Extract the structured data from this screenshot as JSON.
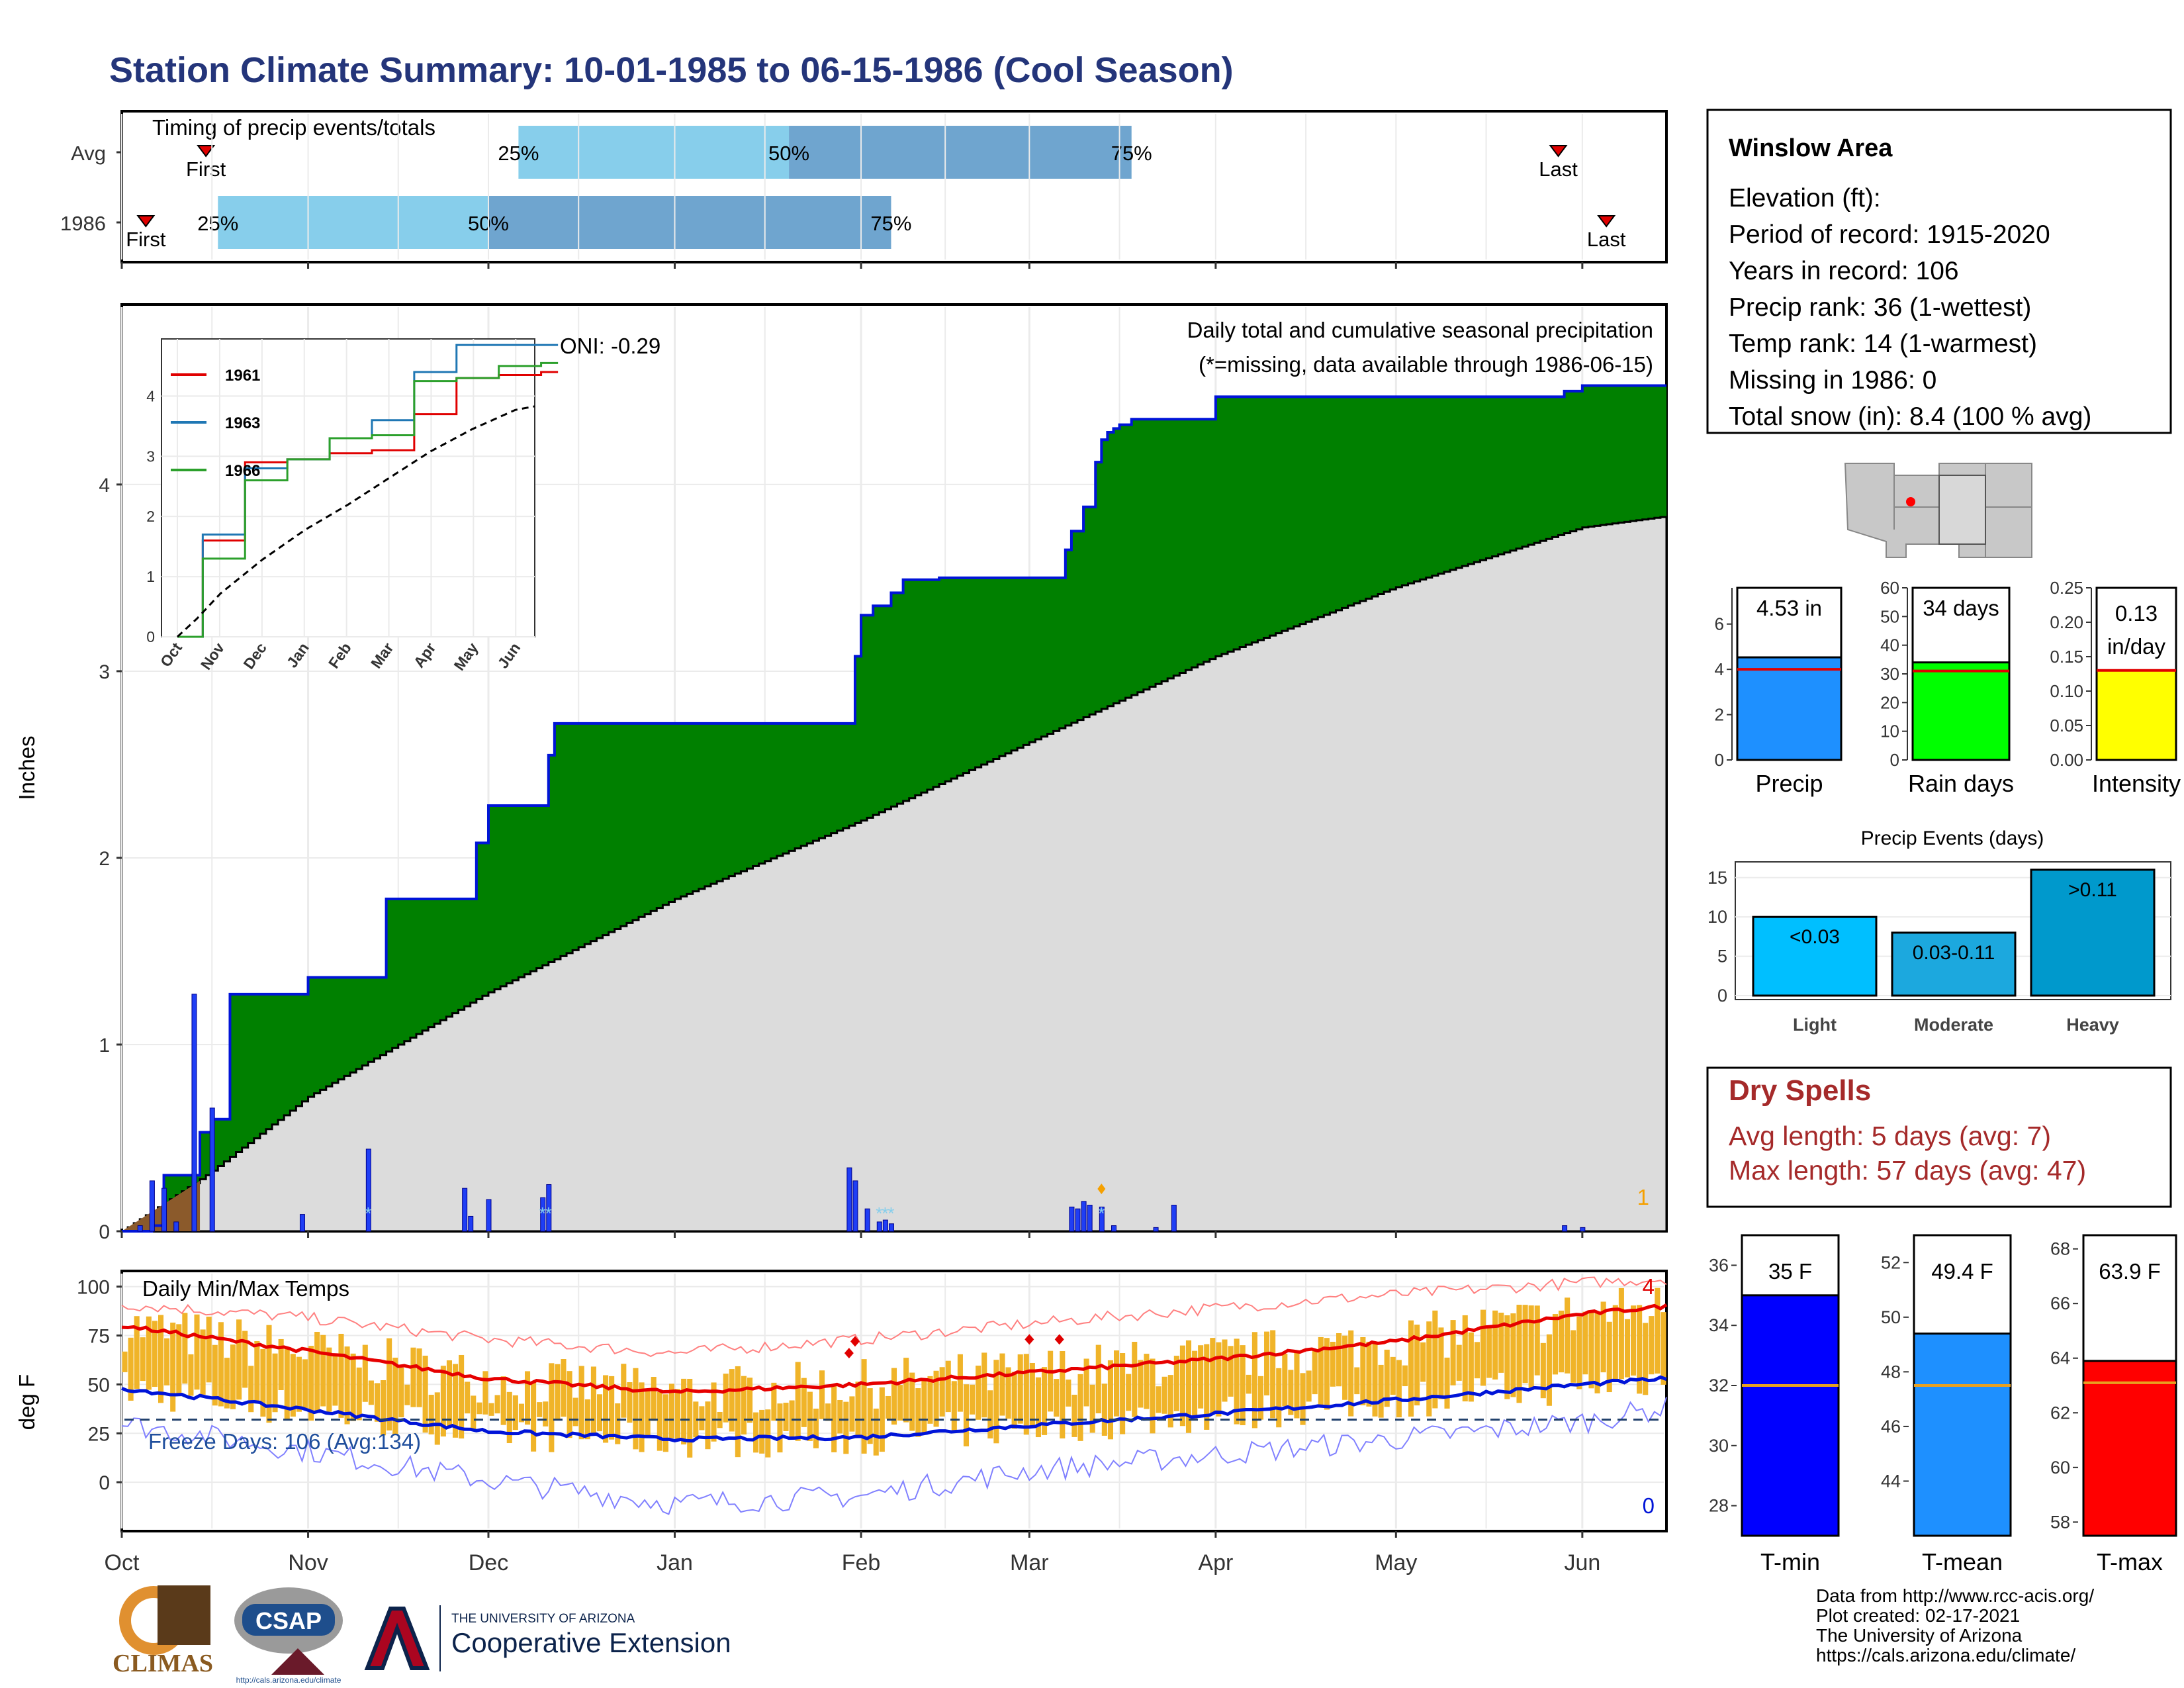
{
  "title": "Station Climate Summary: 10-01-1985 to 06-15-1986 (Cool Season)",
  "colors": {
    "title": "#24357a",
    "precip_fill": "#008000",
    "normal_fill": "#dcdcdc",
    "daily_bar": "#1f3ef5",
    "temp_bar": "#f0b429",
    "max_line": "#e60000",
    "min_line": "#0014d8",
    "light_blue": "#87ceeb",
    "mid_blue": "#6fa5cf",
    "dry_spells": "#a52a2a"
  },
  "timing": {
    "title": "Timing of precip events/totals",
    "rows": [
      {
        "label": "Avg",
        "first": "First",
        "last": "Last",
        "p25": "25%",
        "p50": "50%",
        "p75": "75%"
      },
      {
        "label": "1986",
        "first": "First",
        "last": "Last",
        "p25": "25%",
        "p50": "50%",
        "p75": "75%"
      }
    ]
  },
  "precip_panel": {
    "ylabel": "Inches",
    "oni": "ONI: -0.29",
    "caption": "Daily total and cumulative seasonal precipitation",
    "missing_note": "(*=missing, data available through 1986-06-15)",
    "corner_count": "1",
    "y_ticks": [
      "0",
      "1",
      "2",
      "3",
      "4"
    ]
  },
  "inset": {
    "legend": [
      "1961",
      "1963",
      "1966"
    ],
    "y_ticks": [
      "0",
      "1",
      "2",
      "3",
      "4"
    ],
    "x_ticks": [
      "Oct",
      "Nov",
      "Dec",
      "Jan",
      "Feb",
      "Mar",
      "Apr",
      "May",
      "Jun"
    ]
  },
  "temp_panel": {
    "ylabel": "deg F",
    "title": "Daily Min/Max Temps",
    "freeze_days": "Freeze Days: 106 (Avg:134)",
    "hot_count": "4",
    "cold_count": "0",
    "y_ticks": [
      "100",
      "75",
      "50",
      "25",
      "0"
    ]
  },
  "month_labels": [
    "Oct",
    "Nov",
    "Dec",
    "Jan",
    "Feb",
    "Mar",
    "Apr",
    "May",
    "Jun"
  ],
  "info_box": {
    "name": "Winslow Area",
    "lines": [
      "Elevation (ft):",
      "Period of record: 1915-2020",
      "Years in record: 106",
      "Precip rank: 36 (1-wettest)",
      "Temp rank: 14 (1-warmest)",
      "Missing in 1986: 0",
      "Total snow (in): 8.4 (100 % avg)"
    ]
  },
  "mini_bars": [
    {
      "label": "Precip",
      "value_text": "4.53 in",
      "value": 4.53,
      "avg": 4.0,
      "max": 7.6,
      "ticks": [
        "6",
        "4",
        "2",
        "0"
      ],
      "color": "#1e90ff"
    },
    {
      "label": "Rain days",
      "value_text": "34 days",
      "value": 34,
      "avg": 31,
      "max": 60,
      "ticks": [
        "60",
        "50",
        "40",
        "30",
        "20",
        "10",
        "0"
      ],
      "color": "#00ff00"
    },
    {
      "label": "Intensity",
      "value_text": "0.13 in/day",
      "value": 0.13,
      "avg": 0.13,
      "max": 0.25,
      "ticks": [
        "0.25",
        "0.20",
        "0.15",
        "0.10",
        "0.05",
        "0.00"
      ],
      "color": "#ffff00"
    }
  ],
  "events": {
    "title": "Precip Events (days)",
    "y_ticks": [
      "15",
      "10",
      "5",
      "0"
    ],
    "bars": [
      {
        "category": "Light",
        "label": "<0.03",
        "value": 10,
        "color": "#00bfff"
      },
      {
        "category": "Moderate",
        "label": "0.03-0.11",
        "value": 8,
        "color": "#1ca8de"
      },
      {
        "category": "Heavy",
        "label": ">0.11",
        "value": 16,
        "color": "#0099cc"
      }
    ]
  },
  "dry_spells": {
    "title": "Dry Spells",
    "avg": "Avg length: 5 days (avg: 7)",
    "max": "Max length: 57 days (avg: 47)"
  },
  "temp_bars": [
    {
      "label": "T-min",
      "value_text": "35 F",
      "value": 35,
      "avg": 32,
      "min": 27,
      "max": 37,
      "ticks": [
        "36",
        "34",
        "32",
        "30",
        "28"
      ],
      "color": "#0000ff"
    },
    {
      "label": "T-mean",
      "value_text": "49.4 F",
      "value": 49.4,
      "avg": 47.5,
      "min": 42,
      "max": 53,
      "ticks": [
        "52",
        "50",
        "48",
        "46",
        "44"
      ],
      "color": "#1e90ff"
    },
    {
      "label": "T-max",
      "value_text": "63.9 F",
      "value": 63.9,
      "avg": 63.1,
      "min": 57.5,
      "max": 68.5,
      "ticks": [
        "68",
        "66",
        "64",
        "62",
        "60",
        "58"
      ],
      "color": "#ff0000"
    }
  ],
  "footer": {
    "climas": "CLIMAS",
    "csap": "CSAP",
    "csap_url": "http://cals.arizona.edu/climate",
    "univ_small": "THE UNIVERSITY OF ARIZONA",
    "univ_big": "Cooperative Extension",
    "credits": [
      "Data from http://www.rcc-acis.org/",
      "Plot created: 02-17-2021",
      "The University of Arizona",
      "https://cals.arizona.edu/climate/"
    ]
  },
  "chart_data": [
    {
      "type": "bar",
      "title": "Timing of precip events/totals",
      "categories": [
        "Avg",
        "1986"
      ],
      "series": [
        {
          "name": "First",
          "values": [
            "1985-10-15",
            "1985-10-05"
          ]
        },
        {
          "name": "25%",
          "values": [
            "1985-12-06",
            "1985-10-17"
          ]
        },
        {
          "name": "50%",
          "values": [
            "1986-01-20",
            "1985-12-01"
          ]
        },
        {
          "name": "75%",
          "values": [
            "1986-03-18",
            "1986-02-06"
          ]
        },
        {
          "name": "Last",
          "values": [
            "1986-05-28",
            "1986-06-05"
          ]
        }
      ]
    },
    {
      "type": "area",
      "title": "Daily total and cumulative seasonal precipitation",
      "ylabel": "Inches",
      "ylim": [
        0,
        4.95
      ],
      "xlim": [
        "1985-10-01",
        "1986-06-15"
      ],
      "cumulative_steps": {
        "x": [
          "1985-10-01",
          "1985-10-06",
          "1985-10-08",
          "1985-10-14",
          "1985-10-16",
          "1985-10-19",
          "1985-11-01",
          "1985-11-14",
          "1985-11-29",
          "1985-12-01",
          "1985-12-11",
          "1985-12-12",
          "1986-01-31",
          "1986-02-01",
          "1986-02-03",
          "1986-02-06",
          "1986-02-08",
          "1986-02-14",
          "1986-03-07",
          "1986-03-08",
          "1986-03-10",
          "1986-03-12",
          "1986-03-13",
          "1986-03-14",
          "1986-03-15",
          "1986-03-16",
          "1986-03-18",
          "1986-04-01",
          "1986-05-29",
          "1986-06-01",
          "1986-06-15"
        ],
        "values": [
          0,
          0.03,
          0.3,
          0.53,
          0.6,
          1.27,
          1.36,
          1.78,
          2.08,
          2.28,
          2.55,
          2.72,
          3.08,
          3.3,
          3.35,
          3.42,
          3.49,
          3.5,
          3.65,
          3.75,
          3.88,
          4.12,
          4.24,
          4.28,
          4.3,
          4.32,
          4.35,
          4.47,
          4.5,
          4.53,
          4.53
        ]
      },
      "normal_cumulative": {
        "x": [
          "1985-10-01",
          "1985-10-15",
          "1985-11-01",
          "1985-12-01",
          "1986-01-01",
          "1986-02-01",
          "1986-03-01",
          "1986-04-01",
          "1986-05-01",
          "1986-06-01",
          "1986-06-15"
        ],
        "values": [
          0,
          0.3,
          0.72,
          1.28,
          1.78,
          2.2,
          2.62,
          3.08,
          3.45,
          3.77,
          3.83
        ]
      },
      "daily": {
        "x": [
          "1985-10-04",
          "1985-10-06",
          "1985-10-08",
          "1985-10-10",
          "1985-10-13",
          "1985-10-16",
          "1985-10-31",
          "1985-11-11",
          "1985-11-27",
          "1985-11-28",
          "1985-12-01",
          "1985-12-10",
          "1985-12-11",
          "1986-01-30",
          "1986-01-31",
          "1986-02-02",
          "1986-02-04",
          "1986-02-05",
          "1986-02-06",
          "1986-03-08",
          "1986-03-09",
          "1986-03-10",
          "1986-03-11",
          "1986-03-13",
          "1986-03-15",
          "1986-03-22",
          "1986-03-25",
          "1986-05-29",
          "1986-06-01"
        ],
        "values": [
          0.03,
          0.27,
          0.23,
          0.05,
          1.27,
          0.66,
          0.09,
          0.44,
          0.23,
          0.08,
          0.17,
          0.18,
          0.25,
          0.34,
          0.27,
          0.12,
          0.05,
          0.06,
          0.04,
          0.13,
          0.12,
          0.16,
          0.14,
          0.13,
          0.03,
          0.02,
          0.14,
          0.03,
          0.02
        ]
      }
    },
    {
      "type": "line",
      "title": "Daily Min/Max Temps",
      "ylabel": "deg F",
      "ylim": [
        -25,
        108
      ],
      "x": [
        "1985-10-01",
        "1985-11-01",
        "1985-12-01",
        "1986-01-01",
        "1986-02-01",
        "1986-03-01",
        "1986-04-01",
        "1986-05-01",
        "1986-06-01",
        "1986-06-15"
      ],
      "series": [
        {
          "name": "Normal max",
          "values": [
            80,
            67,
            53,
            46,
            50,
            56,
            63,
            72,
            86,
            90
          ]
        },
        {
          "name": "Normal min",
          "values": [
            48,
            37,
            26,
            22,
            23,
            29,
            35,
            42,
            50,
            53
          ]
        },
        {
          "name": "Record high",
          "values": [
            91,
            84,
            73,
            66,
            73,
            81,
            89,
            96,
            102,
            104
          ]
        },
        {
          "name": "Record low",
          "values": [
            30,
            16,
            1,
            -11,
            -7,
            6,
            14,
            22,
            31,
            38
          ]
        }
      ],
      "freeze_line": 32
    },
    {
      "type": "line",
      "title": "",
      "x_ticks": [
        "Oct",
        "Nov",
        "Dec",
        "Jan",
        "Feb",
        "Mar",
        "Apr",
        "May",
        "Jun"
      ],
      "series": [
        {
          "name": "1961",
          "values": [
            0,
            1.6,
            2.9,
            2.95,
            3.05,
            3.1,
            3.7,
            4.3,
            4.35,
            4.4
          ]
        },
        {
          "name": "1963",
          "values": [
            0,
            1.7,
            2.8,
            2.95,
            3.3,
            3.6,
            4.4,
            4.85,
            4.85,
            4.85
          ]
        },
        {
          "name": "1966",
          "values": [
            0,
            1.3,
            2.6,
            2.95,
            3.3,
            3.35,
            4.25,
            4.3,
            4.5,
            4.55
          ]
        }
      ]
    }
  ]
}
